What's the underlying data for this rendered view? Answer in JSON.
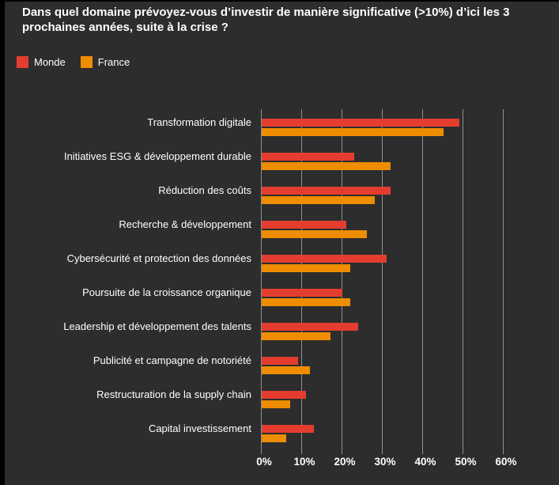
{
  "colors": {
    "background": "#2d2d2d",
    "frame": "#000000",
    "grid": "#8f8f8f",
    "text": "#ffffff",
    "monde_red": "#e43d30",
    "france_orange": "#ef8d00"
  },
  "title": {
    "text": "Dans quel domaine prévoyez-vous d’investir de manière significative (>10%) d’ici les 3 prochaines années, suite à la crise ?"
  },
  "legend": [
    {
      "label": "Monde",
      "color": "#e43d30"
    },
    {
      "label": "France",
      "color": "#ef8d00"
    }
  ],
  "chart_data": {
    "type": "bar",
    "orientation": "horizontal",
    "title": "Dans quel domaine prévoyez-vous d’investir de manière significative (>10%) d’ici les 3 prochaines années, suite à la crise ?",
    "categories": [
      "Transformation digitale",
      "Initiatives ESG & développement durable",
      "Réduction des coûts",
      "Recherche & développement",
      "Cybersécurité et protection des données",
      "Poursuite de la croissance organique",
      "Leadership et développement des talents",
      "Publicité et campagne de notoriété",
      "Restructuration de la supply chain",
      "Capital investissement"
    ],
    "series": [
      {
        "name": "Monde",
        "color": "#e43d30",
        "values": [
          49,
          23,
          32,
          21,
          31,
          20,
          24,
          9,
          11,
          13
        ]
      },
      {
        "name": "France",
        "color": "#ef8d00",
        "values": [
          45,
          32,
          28,
          26,
          22,
          22,
          17,
          12,
          7,
          6
        ]
      }
    ],
    "x_ticks": [
      "0%",
      "10%",
      "20%",
      "30%",
      "40%",
      "50%",
      "60%"
    ],
    "xlim": [
      0,
      60
    ],
    "grid": "vertical-only",
    "legend_position": "top-left",
    "unit": "%"
  }
}
